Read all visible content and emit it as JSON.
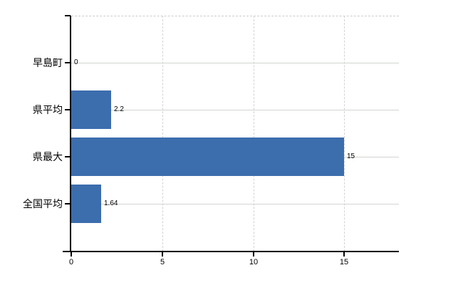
{
  "chart_data": {
    "type": "bar",
    "orientation": "horizontal",
    "title": "",
    "categories": [
      "早島町",
      "県平均",
      "県最大",
      "全国平均"
    ],
    "values": [
      0,
      2.2,
      15,
      1.64
    ],
    "value_labels": [
      "0",
      "2.2",
      "15",
      "1.64"
    ],
    "x_ticks": [
      0,
      5,
      10,
      15
    ],
    "x_tick_labels": [
      "0",
      "5",
      "10",
      "15"
    ],
    "xlim": [
      0,
      18
    ],
    "grid": true,
    "legend": false,
    "colors": {
      "bar": "#3c6dad",
      "axis": "#000000",
      "gridline_horizontal": "#d0d6d0",
      "gridline_vertical": "#d3d3d3",
      "top_border": "#c9cdc9",
      "text": "#000000",
      "background": "#ffffff"
    }
  }
}
